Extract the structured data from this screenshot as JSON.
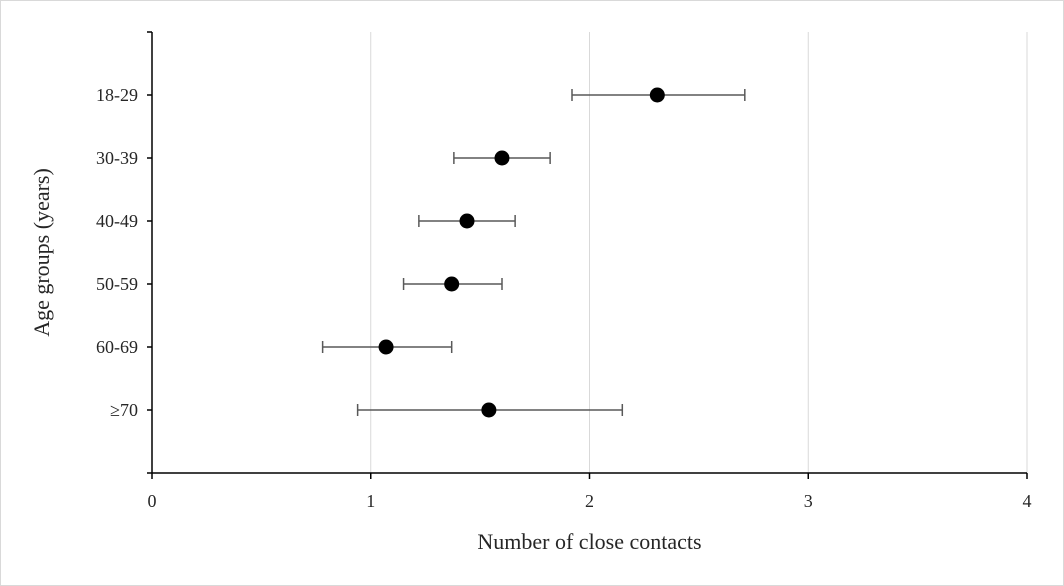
{
  "chart_data": {
    "type": "scatter",
    "orientation": "horizontal",
    "title": "",
    "xlabel": "Number of close contacts",
    "ylabel": "Age groups (years)",
    "xlim": [
      0,
      4
    ],
    "x_ticks": [
      0,
      1,
      2,
      3,
      4
    ],
    "x_tick_labels": [
      "0",
      "1",
      "2",
      "3",
      "4"
    ],
    "categories": [
      "18-29",
      "30-39",
      "40-49",
      "50-59",
      "60-69",
      "≥70"
    ],
    "values": [
      2.31,
      1.6,
      1.44,
      1.37,
      1.07,
      1.54
    ],
    "error_low": [
      1.92,
      1.38,
      1.22,
      1.15,
      0.78,
      0.94
    ],
    "error_high": [
      2.71,
      1.82,
      1.66,
      1.6,
      1.37,
      2.15
    ],
    "grid": "vertical",
    "legend": "none",
    "colors": {
      "marker": "#000000",
      "error_bar": "#595959",
      "axis": "#000000",
      "grid": "#d9d9d9"
    }
  }
}
